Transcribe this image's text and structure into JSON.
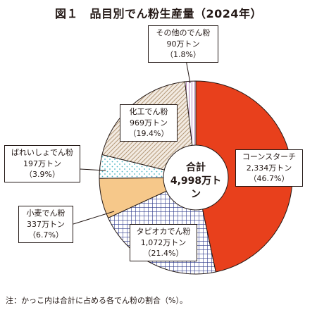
{
  "title": "図１　品目別でん粉生産量（2024年）",
  "note": "注：かっこ内は合計に占める各でん粉の割合（%）。",
  "chart_data": {
    "type": "pie",
    "title": "図１　品目別でん粉生産量（2024年）",
    "unit": "万トン",
    "total": {
      "label": "合計",
      "value": "4,998万トン"
    },
    "slices": [
      {
        "key": "cornstarch",
        "label": "コーンスターチ",
        "value": 2334,
        "value_text": "2,334万トン",
        "pct": 46.7,
        "pct_text": "（46.7%）",
        "color": "#e8401c"
      },
      {
        "key": "tapioca",
        "label": "タピオカでん粉",
        "value": 1072,
        "value_text": "1,072万トン",
        "pct": 21.4,
        "pct_text": "（21.4%）",
        "color": "#2e3a8c"
      },
      {
        "key": "wheat",
        "label": "小麦でん粉",
        "value": 337,
        "value_text": "337万トン",
        "pct": 6.7,
        "pct_text": "（6.7%）",
        "color": "#f6c88a"
      },
      {
        "key": "potato",
        "label": "ばれいしょでん粉",
        "value": 197,
        "value_text": "197万トン",
        "pct": 3.9,
        "pct_text": "（3.9%）",
        "color": "#49b6c4"
      },
      {
        "key": "modified",
        "label": "化工でん粉",
        "value": 969,
        "value_text": "969万トン",
        "pct": 19.4,
        "pct_text": "（19.4%）",
        "color": "#b59a7a"
      },
      {
        "key": "other",
        "label": "その他のでん粉",
        "value": 90,
        "value_text": "90万トン",
        "pct": 1.8,
        "pct_text": "（1.8%）",
        "color": "#9a4fa0"
      }
    ]
  }
}
